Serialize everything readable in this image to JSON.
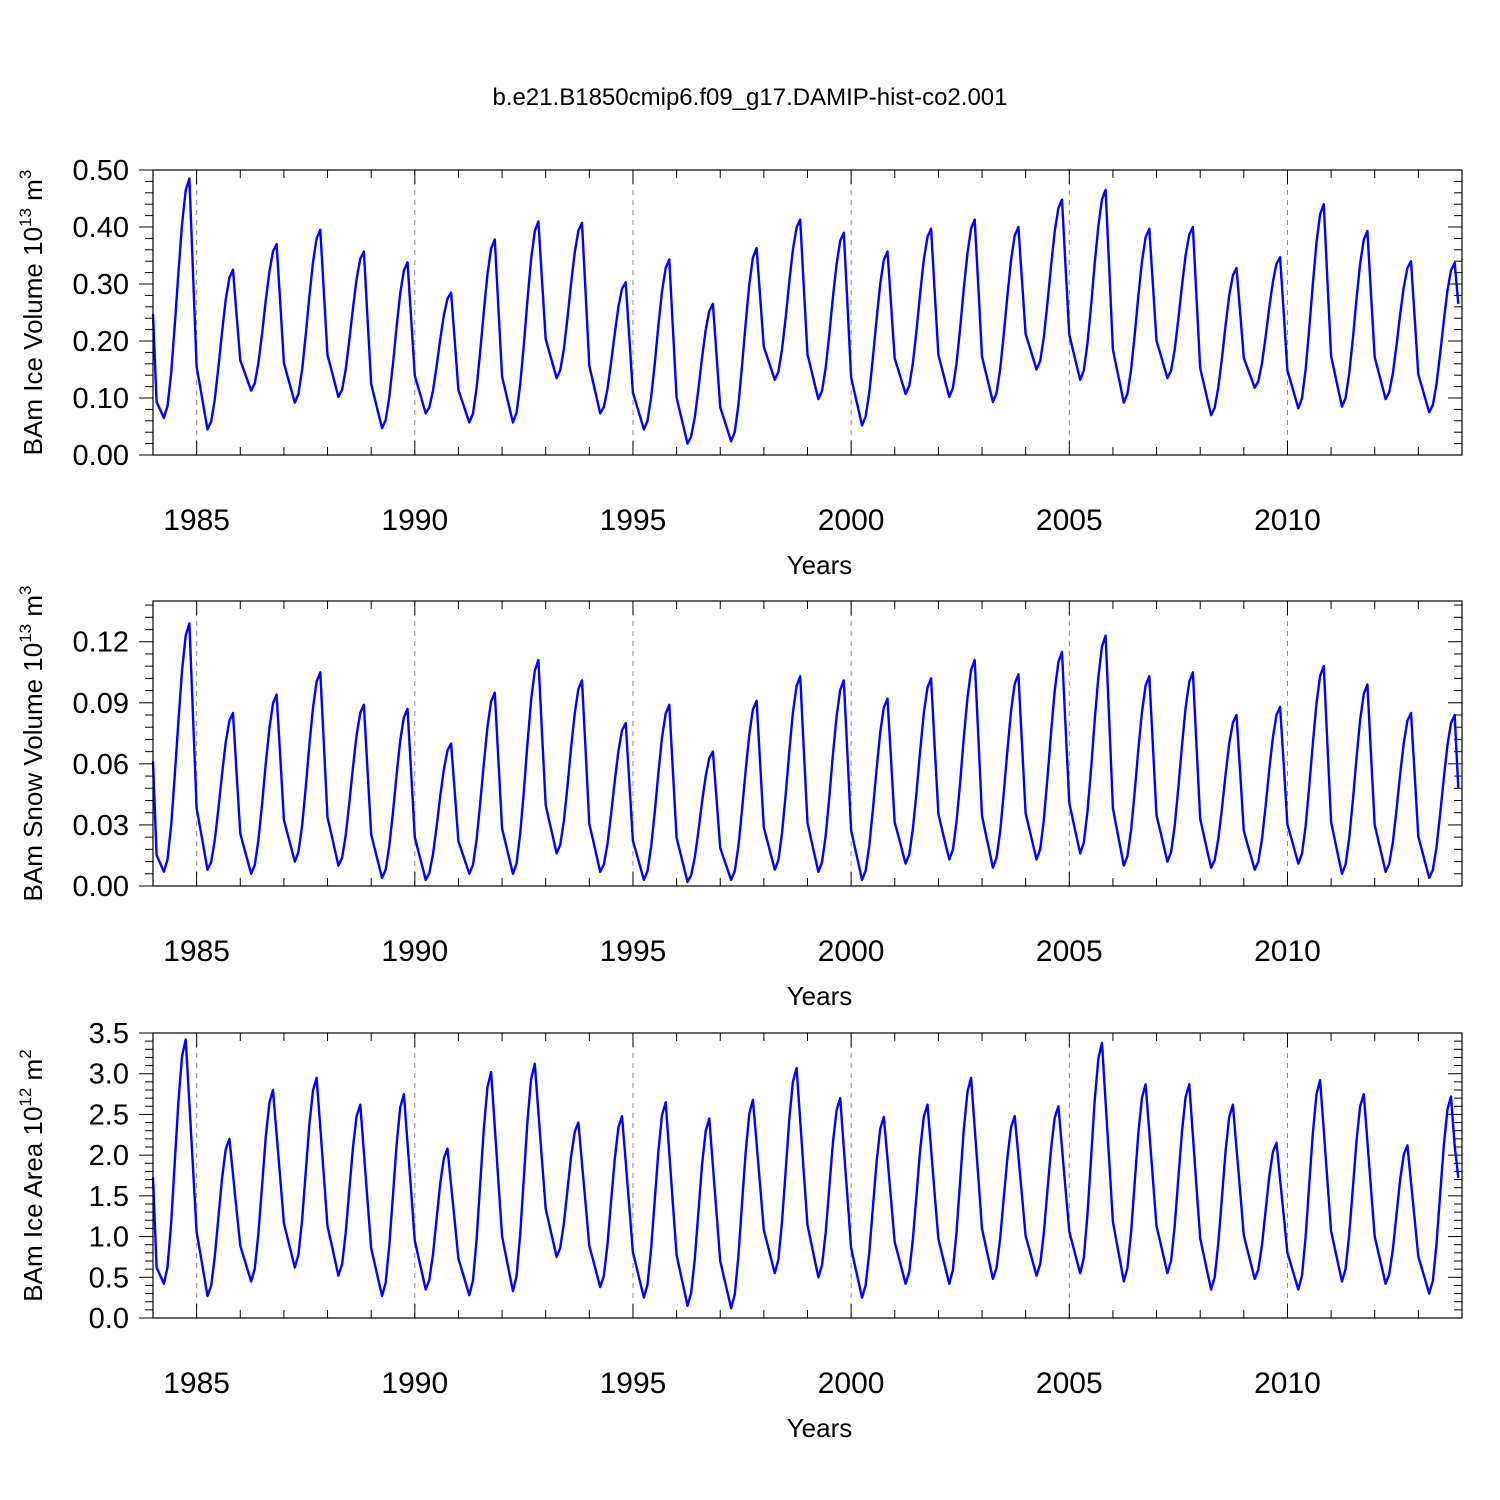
{
  "title": "b.e21.B1850cmip6.f09_g17.DAMIP-hist-co2.001",
  "colors": {
    "series": "#0000ff",
    "reference_lines": "#888888",
    "frame": "#000000"
  },
  "chart_data": [
    {
      "type": "line",
      "ylabel": "BAm Ice Volume",
      "ylabel_unit": "10",
      "ylabel_exp1": "13",
      "ylabel_unit_tail": "m",
      "ylabel_exp2": "3",
      "xlabel": "Years",
      "xlim": [
        1984.0,
        2014.0
      ],
      "ylim": [
        0.0,
        0.5
      ],
      "yticks": [
        "0.00",
        "0.10",
        "0.20",
        "0.30",
        "0.40",
        "0.50"
      ],
      "ytick_values": [
        0,
        0.1,
        0.2,
        0.3,
        0.4,
        0.5
      ],
      "xticks": [
        "1985",
        "1990",
        "1995",
        "2000",
        "2005",
        "2010"
      ],
      "xtick_values": [
        1985,
        1990,
        1995,
        2000,
        2005,
        2010
      ],
      "reference_years": [
        1985,
        1990,
        1995,
        2000,
        2005,
        2010
      ],
      "series": [
        {
          "name": "BAm Ice Volume",
          "start": 1984.0,
          "step": 0.08333,
          "annual_min": [
            0.065,
            0.045,
            0.113,
            0.092,
            0.102,
            0.047,
            0.073,
            0.057,
            0.057,
            0.135,
            0.073,
            0.045,
            0.02,
            0.024,
            0.132,
            0.098,
            0.052,
            0.107,
            0.102,
            0.093,
            0.15,
            0.132,
            0.092,
            0.135,
            0.07,
            0.118,
            0.082,
            0.085,
            0.098,
            0.075
          ],
          "annual_max": [
            0.485,
            0.325,
            0.37,
            0.395,
            0.357,
            0.338,
            0.285,
            0.378,
            0.41,
            0.407,
            0.303,
            0.343,
            0.265,
            0.363,
            0.413,
            0.39,
            0.357,
            0.397,
            0.413,
            0.4,
            0.448,
            0.465,
            0.397,
            0.4,
            0.328,
            0.347,
            0.44,
            0.393,
            0.34,
            0.337
          ],
          "min_month": 3,
          "max_month": 10,
          "final_value": 0.265
        }
      ]
    },
    {
      "type": "line",
      "ylabel": "BAm Snow Volume",
      "ylabel_unit": "10",
      "ylabel_exp1": "13",
      "ylabel_unit_tail": "m",
      "ylabel_exp2": "3",
      "xlabel": "Years",
      "xlim": [
        1984.0,
        2014.0
      ],
      "ylim": [
        0.0,
        0.14
      ],
      "yticks": [
        "0.00",
        "0.03",
        "0.06",
        "0.09",
        "0.12"
      ],
      "ytick_values": [
        0,
        0.03,
        0.06,
        0.09,
        0.12
      ],
      "xticks": [
        "1985",
        "1990",
        "1995",
        "2000",
        "2005",
        "2010"
      ],
      "xtick_values": [
        1985,
        1990,
        1995,
        2000,
        2005,
        2010
      ],
      "reference_years": [
        1985,
        1990,
        1995,
        2000,
        2005,
        2010
      ],
      "series": [
        {
          "name": "BAm Snow Volume",
          "start": 1984.0,
          "step": 0.08333,
          "annual_min": [
            0.007,
            0.008,
            0.006,
            0.012,
            0.01,
            0.004,
            0.003,
            0.006,
            0.006,
            0.016,
            0.007,
            0.003,
            0.002,
            0.003,
            0.008,
            0.007,
            0.003,
            0.011,
            0.013,
            0.009,
            0.013,
            0.016,
            0.01,
            0.012,
            0.009,
            0.008,
            0.011,
            0.006,
            0.007,
            0.004
          ],
          "annual_max": [
            0.129,
            0.085,
            0.094,
            0.105,
            0.089,
            0.087,
            0.07,
            0.095,
            0.111,
            0.101,
            0.08,
            0.089,
            0.066,
            0.091,
            0.103,
            0.101,
            0.092,
            0.102,
            0.111,
            0.104,
            0.115,
            0.123,
            0.103,
            0.105,
            0.084,
            0.088,
            0.108,
            0.099,
            0.085,
            0.084
          ],
          "min_month": 3,
          "max_month": 10,
          "final_value": 0.048
        }
      ]
    },
    {
      "type": "line",
      "ylabel": "BAm Ice Area",
      "ylabel_unit": "10",
      "ylabel_exp1": "12",
      "ylabel_unit_tail": "m",
      "ylabel_exp2": "2",
      "xlabel": "Years",
      "xlim": [
        1984.0,
        2014.0
      ],
      "ylim": [
        0.0,
        3.5
      ],
      "yticks": [
        "0.0",
        "0.5",
        "1.0",
        "1.5",
        "2.0",
        "2.5",
        "3.0",
        "3.5"
      ],
      "ytick_values": [
        0,
        0.5,
        1.0,
        1.5,
        2.0,
        2.5,
        3.0,
        3.5
      ],
      "xticks": [
        "1985",
        "1990",
        "1995",
        "2000",
        "2005",
        "2010"
      ],
      "xtick_values": [
        1985,
        1990,
        1995,
        2000,
        2005,
        2010
      ],
      "reference_years": [
        1985,
        1990,
        1995,
        2000,
        2005,
        2010
      ],
      "series": [
        {
          "name": "BAm Ice Area",
          "start": 1984.0,
          "step": 0.08333,
          "annual_min": [
            0.42,
            0.27,
            0.45,
            0.62,
            0.52,
            0.27,
            0.35,
            0.28,
            0.33,
            0.75,
            0.38,
            0.25,
            0.15,
            0.12,
            0.55,
            0.5,
            0.25,
            0.42,
            0.42,
            0.48,
            0.52,
            0.55,
            0.45,
            0.55,
            0.35,
            0.48,
            0.35,
            0.45,
            0.42,
            0.3
          ],
          "annual_max": [
            3.42,
            2.2,
            2.8,
            2.95,
            2.62,
            2.75,
            2.08,
            3.02,
            3.12,
            2.4,
            2.48,
            2.65,
            2.45,
            2.68,
            3.07,
            2.7,
            2.47,
            2.62,
            2.95,
            2.48,
            2.6,
            3.38,
            2.87,
            2.87,
            2.62,
            2.15,
            2.92,
            2.75,
            2.12,
            2.72
          ],
          "min_month": 3,
          "max_month": 9,
          "final_value": 1.72
        }
      ]
    }
  ]
}
